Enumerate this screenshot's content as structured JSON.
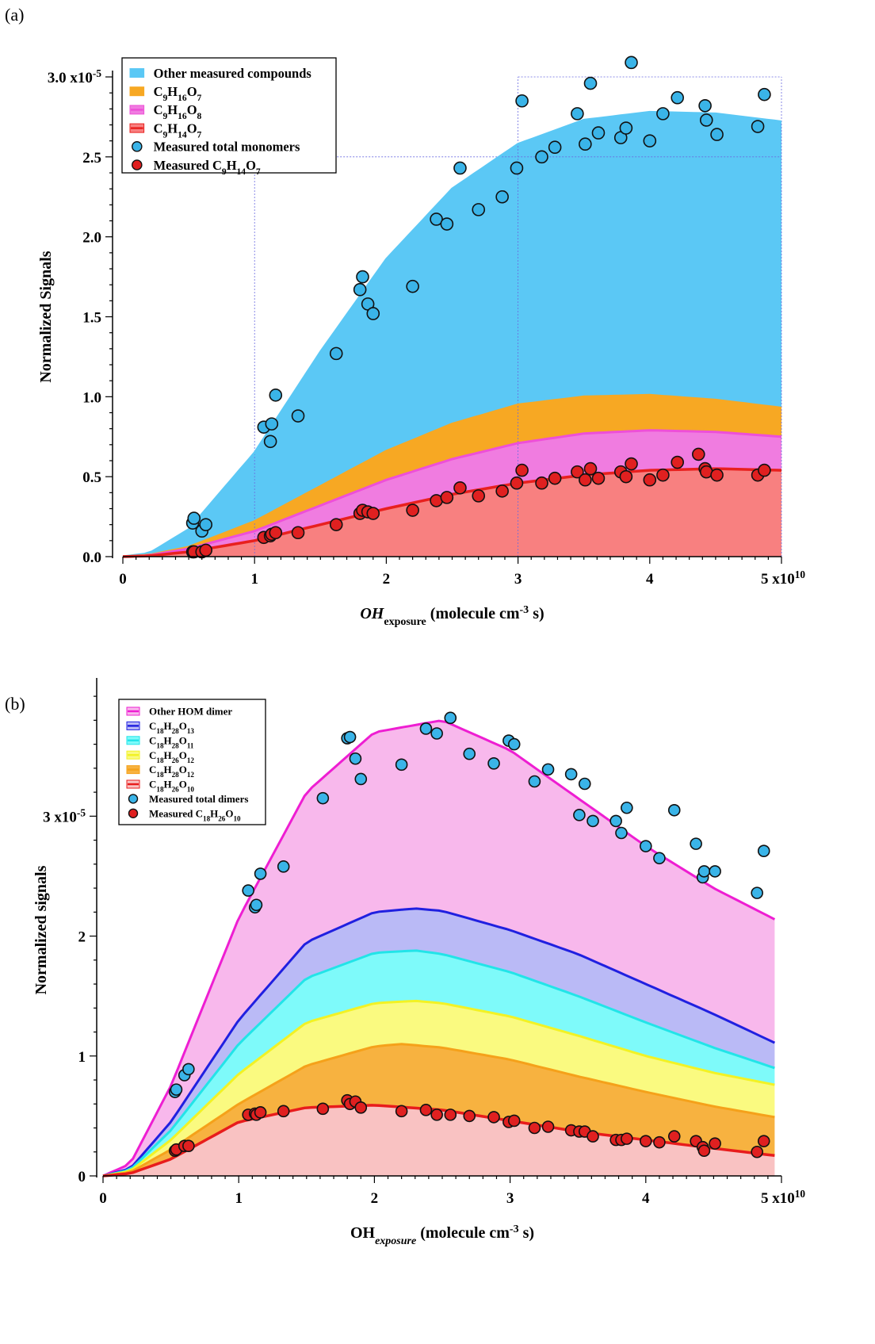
{
  "panel_labels": [
    "(a)",
    "(b)"
  ],
  "chart_data": [
    {
      "type": "area",
      "panel": "(a)",
      "xlabel_main": "OH",
      "xlabel_sub": "exposure",
      "xlabel_rest": " (molecule cm",
      "xlabel_sup": "-3",
      "xlabel_end": " s)",
      "ylabel": "Normalized Signals",
      "x_multiplier": "5 x10",
      "x_multiplier_exp": "10",
      "y_multiplier_exp": "-5",
      "xlim": [
        0,
        5
      ],
      "ylim": [
        0,
        3.0
      ],
      "x_ticks": [
        "0",
        "1",
        "2",
        "3",
        "4"
      ],
      "y_ticks": [
        "0.0",
        "0.5",
        "1.0",
        "1.5",
        "2.0",
        "2.5",
        "3.0 x10"
      ],
      "y_tick_values": [
        0,
        0.5,
        1.0,
        1.5,
        2.0,
        2.5,
        3.0
      ],
      "legend_placement": "top-left",
      "series": [
        {
          "name": "Other measured compounds",
          "color": "#5bc8f5",
          "line": "#5bc8f5",
          "kind": "stack",
          "x": [
            0,
            0.2,
            0.5,
            1.0,
            1.5,
            2.0,
            2.5,
            3.0,
            3.5,
            4.0,
            4.5,
            5.0
          ],
          "y": [
            0,
            0.02,
            0.17,
            0.65,
            1.28,
            1.86,
            2.3,
            2.58,
            2.73,
            2.78,
            2.77,
            2.72
          ]
        },
        {
          "name_parts": [
            [
              "C",
              ""
            ],
            [
              "9",
              "sub"
            ],
            [
              "H",
              ""
            ],
            [
              "16",
              "sub"
            ],
            [
              "O",
              ""
            ],
            [
              "7",
              "sub"
            ]
          ],
          "color": "#f7a823",
          "line": "#f7a823",
          "kind": "stack",
          "x": [
            0,
            0.2,
            0.5,
            1.0,
            1.5,
            2.0,
            2.5,
            3.0,
            3.5,
            4.0,
            4.5,
            5.0
          ],
          "y": [
            0,
            0.01,
            0.06,
            0.22,
            0.44,
            0.66,
            0.83,
            0.95,
            1.0,
            1.01,
            0.98,
            0.93
          ]
        },
        {
          "name_parts": [
            [
              "C",
              ""
            ],
            [
              "9",
              "sub"
            ],
            [
              "H",
              ""
            ],
            [
              "16",
              "sub"
            ],
            [
              "O",
              ""
            ],
            [
              "8",
              "sub"
            ]
          ],
          "color": "#f07ce0",
          "line": "#ee4fd8",
          "kind": "stack",
          "x": [
            0,
            0.2,
            0.5,
            1.0,
            1.5,
            2.0,
            2.5,
            3.0,
            3.5,
            4.0,
            4.5,
            5.0
          ],
          "y": [
            0,
            0.008,
            0.05,
            0.16,
            0.32,
            0.48,
            0.61,
            0.71,
            0.77,
            0.79,
            0.78,
            0.75
          ]
        },
        {
          "name_parts": [
            [
              "C",
              ""
            ],
            [
              "9",
              "sub"
            ],
            [
              "H",
              ""
            ],
            [
              "14",
              "sub"
            ],
            [
              "O",
              ""
            ],
            [
              "7",
              "sub"
            ]
          ],
          "color": "#f88080",
          "line": "#e8201e",
          "kind": "stack",
          "x": [
            0,
            0.2,
            0.5,
            1.0,
            1.5,
            2.0,
            2.5,
            3.0,
            3.5,
            4.0,
            4.5,
            5.0
          ],
          "y": [
            0,
            0.005,
            0.03,
            0.1,
            0.2,
            0.3,
            0.39,
            0.46,
            0.51,
            0.54,
            0.55,
            0.54
          ]
        },
        {
          "name": "Measured total monomers",
          "color": "#3ab4e8",
          "kind": "points",
          "x": [
            0.53,
            0.54,
            0.6,
            0.63,
            1.07,
            1.12,
            1.13,
            1.16,
            1.33,
            1.62,
            1.8,
            1.82,
            1.86,
            1.9,
            2.2,
            2.38,
            2.46,
            2.56,
            2.7,
            2.88,
            2.99,
            3.03,
            3.18,
            3.28,
            3.45,
            3.51,
            3.55,
            3.61,
            3.78,
            3.82,
            3.86,
            4.0,
            4.1,
            4.21,
            4.42,
            4.43,
            4.51,
            4.82,
            4.87
          ],
          "y": [
            0.21,
            0.24,
            0.16,
            0.2,
            0.81,
            0.72,
            0.83,
            1.01,
            0.88,
            1.27,
            1.67,
            1.75,
            1.58,
            1.52,
            1.69,
            2.11,
            2.08,
            2.43,
            2.17,
            2.25,
            2.43,
            2.85,
            2.5,
            2.56,
            2.77,
            2.58,
            2.96,
            2.65,
            2.62,
            2.68,
            3.09,
            2.6,
            2.77,
            2.87,
            2.82,
            2.73,
            2.64,
            2.69,
            2.89
          ]
        },
        {
          "name_parts": [
            [
              "Measured C",
              ""
            ],
            [
              "9",
              "sub"
            ],
            [
              "H",
              ""
            ],
            [
              "14",
              "sub"
            ],
            [
              "O",
              ""
            ],
            [
              "7",
              "sub"
            ]
          ],
          "color": "#e02020",
          "kind": "points",
          "x": [
            0.53,
            0.54,
            0.6,
            0.63,
            1.07,
            1.12,
            1.13,
            1.16,
            1.33,
            1.62,
            1.8,
            1.82,
            1.86,
            1.9,
            2.2,
            2.38,
            2.46,
            2.56,
            2.7,
            2.88,
            2.99,
            3.03,
            3.18,
            3.28,
            3.45,
            3.51,
            3.55,
            3.61,
            3.78,
            3.82,
            3.86,
            4.0,
            4.1,
            4.21,
            4.37,
            4.42,
            4.43,
            4.51,
            4.82,
            4.87
          ],
          "y": [
            0.03,
            0.03,
            0.03,
            0.04,
            0.12,
            0.13,
            0.14,
            0.15,
            0.15,
            0.2,
            0.27,
            0.29,
            0.28,
            0.27,
            0.29,
            0.35,
            0.37,
            0.43,
            0.38,
            0.41,
            0.46,
            0.54,
            0.46,
            0.49,
            0.53,
            0.48,
            0.55,
            0.49,
            0.53,
            0.5,
            0.58,
            0.48,
            0.51,
            0.59,
            0.64,
            0.55,
            0.53,
            0.51,
            0.51,
            0.54
          ]
        }
      ]
    },
    {
      "type": "area",
      "panel": "(b)",
      "xlabel_main": "OH",
      "xlabel_sub": "exposure",
      "xlabel_rest": " (molecule cm",
      "xlabel_sup": "-3",
      "xlabel_end": " s)",
      "ylabel": "Normalized signals",
      "x_multiplier": "5 x10",
      "x_multiplier_exp": "10",
      "y_multiplier_exp": "-5",
      "xlim": [
        0,
        5
      ],
      "ylim": [
        0,
        4.1
      ],
      "x_ticks": [
        "0",
        "1",
        "2",
        "3",
        "4"
      ],
      "y_ticks": [
        "0",
        "1",
        "2",
        "3 x10"
      ],
      "y_tick_values": [
        0,
        1,
        2,
        3
      ],
      "legend_placement": "top-left",
      "series": [
        {
          "name": "Other HOM dimer",
          "color": "#f8b8ec",
          "line": "#ee1ed2",
          "kind": "stack",
          "x": [
            0,
            0.2,
            0.5,
            1.0,
            1.5,
            2.0,
            2.5,
            3.0,
            3.5,
            4.0,
            4.5,
            4.95
          ],
          "y": [
            0,
            0.1,
            0.75,
            2.15,
            3.2,
            3.7,
            3.8,
            3.55,
            3.15,
            2.75,
            2.4,
            2.14
          ]
        },
        {
          "name_parts": [
            [
              "C",
              ""
            ],
            [
              "18",
              "sub"
            ],
            [
              "H",
              ""
            ],
            [
              "28",
              "sub"
            ],
            [
              "O",
              ""
            ],
            [
              "13",
              "sub"
            ]
          ],
          "color": "#babaf6",
          "line": "#2020e0",
          "kind": "stack",
          "x": [
            0,
            0.2,
            0.5,
            1.0,
            1.5,
            2.0,
            2.3,
            2.5,
            3.0,
            3.5,
            4.0,
            4.5,
            4.95
          ],
          "y": [
            0,
            0.06,
            0.45,
            1.3,
            1.95,
            2.2,
            2.23,
            2.21,
            2.05,
            1.85,
            1.6,
            1.35,
            1.11
          ]
        },
        {
          "name_parts": [
            [
              "C",
              ""
            ],
            [
              "18",
              "sub"
            ],
            [
              "H",
              ""
            ],
            [
              "28",
              "sub"
            ],
            [
              "O",
              ""
            ],
            [
              "11",
              "sub"
            ]
          ],
          "color": "#7efafa",
          "line": "#22e4e8",
          "kind": "stack",
          "x": [
            0,
            0.2,
            0.5,
            1.0,
            1.5,
            2.0,
            2.3,
            2.5,
            3.0,
            3.5,
            4.0,
            4.5,
            4.95
          ],
          "y": [
            0,
            0.05,
            0.38,
            1.1,
            1.65,
            1.86,
            1.88,
            1.85,
            1.7,
            1.5,
            1.28,
            1.07,
            0.9
          ]
        },
        {
          "name_parts": [
            [
              "C",
              ""
            ],
            [
              "18",
              "sub"
            ],
            [
              "H",
              ""
            ],
            [
              "26",
              "sub"
            ],
            [
              "O",
              ""
            ],
            [
              "12",
              "sub"
            ]
          ],
          "color": "#fafa80",
          "line": "#f2f224",
          "kind": "stack",
          "x": [
            0,
            0.2,
            0.5,
            1.0,
            1.5,
            2.0,
            2.3,
            2.5,
            3.0,
            3.5,
            4.0,
            4.5,
            4.95
          ],
          "y": [
            0,
            0.04,
            0.3,
            0.85,
            1.28,
            1.44,
            1.46,
            1.44,
            1.33,
            1.17,
            1.0,
            0.86,
            0.76
          ]
        },
        {
          "name_parts": [
            [
              "C",
              ""
            ],
            [
              "18",
              "sub"
            ],
            [
              "H",
              ""
            ],
            [
              "28",
              "sub"
            ],
            [
              "O",
              ""
            ],
            [
              "12",
              "sub"
            ]
          ],
          "color": "#f7b240",
          "line": "#f5a11a",
          "kind": "stack",
          "x": [
            0,
            0.2,
            0.5,
            1.0,
            1.5,
            2.0,
            2.2,
            2.5,
            3.0,
            3.5,
            4.0,
            4.5,
            4.95
          ],
          "y": [
            0,
            0.03,
            0.22,
            0.6,
            0.92,
            1.08,
            1.1,
            1.07,
            0.97,
            0.83,
            0.7,
            0.58,
            0.49
          ]
        },
        {
          "name_parts": [
            [
              "C",
              ""
            ],
            [
              "18",
              "sub"
            ],
            [
              "H",
              ""
            ],
            [
              "26",
              "sub"
            ],
            [
              "O",
              ""
            ],
            [
              "10",
              "sub"
            ]
          ],
          "color": "#f9c2c2",
          "line": "#e81c1c",
          "kind": "stack",
          "x": [
            0,
            0.2,
            0.5,
            1.0,
            1.5,
            2.0,
            2.5,
            3.0,
            3.5,
            4.0,
            4.5,
            4.95
          ],
          "y": [
            0,
            0.02,
            0.14,
            0.45,
            0.57,
            0.59,
            0.55,
            0.46,
            0.37,
            0.3,
            0.23,
            0.17
          ]
        },
        {
          "name": "Measured total dimers",
          "color": "#3ab4e8",
          "kind": "points",
          "x": [
            0.53,
            0.54,
            0.6,
            0.63,
            1.07,
            1.12,
            1.13,
            1.16,
            1.33,
            1.62,
            1.8,
            1.82,
            1.86,
            1.9,
            2.2,
            2.38,
            2.46,
            2.56,
            2.7,
            2.88,
            2.99,
            3.03,
            3.18,
            3.28,
            3.45,
            3.51,
            3.55,
            3.61,
            3.78,
            3.82,
            3.86,
            4.0,
            4.1,
            4.21,
            4.37,
            4.42,
            4.43,
            4.51,
            4.82,
            4.87
          ],
          "y": [
            0.7,
            0.72,
            0.84,
            0.89,
            2.38,
            2.24,
            2.26,
            2.52,
            2.58,
            3.15,
            3.65,
            3.66,
            3.48,
            3.31,
            3.43,
            3.73,
            3.69,
            3.82,
            3.52,
            3.44,
            3.63,
            3.6,
            3.29,
            3.39,
            3.35,
            3.01,
            3.27,
            2.96,
            2.96,
            2.86,
            3.07,
            2.75,
            2.65,
            3.05,
            2.77,
            2.49,
            2.54,
            2.54,
            2.36,
            2.71
          ]
        },
        {
          "name_parts": [
            [
              "Measured C",
              ""
            ],
            [
              "18",
              "sub"
            ],
            [
              "H",
              ""
            ],
            [
              "26",
              "sub"
            ],
            [
              "O",
              ""
            ],
            [
              "10",
              "sub"
            ]
          ],
          "color": "#e02020",
          "kind": "points",
          "x": [
            0.53,
            0.54,
            0.6,
            0.63,
            1.07,
            1.12,
            1.13,
            1.16,
            1.33,
            1.62,
            1.8,
            1.82,
            1.86,
            1.9,
            2.2,
            2.38,
            2.46,
            2.56,
            2.7,
            2.88,
            2.99,
            3.03,
            3.18,
            3.28,
            3.45,
            3.51,
            3.55,
            3.61,
            3.78,
            3.82,
            3.86,
            4.0,
            4.1,
            4.21,
            4.37,
            4.42,
            4.43,
            4.51,
            4.82,
            4.87
          ],
          "y": [
            0.21,
            0.22,
            0.25,
            0.25,
            0.51,
            0.52,
            0.51,
            0.53,
            0.54,
            0.56,
            0.63,
            0.6,
            0.62,
            0.57,
            0.54,
            0.55,
            0.51,
            0.51,
            0.5,
            0.49,
            0.45,
            0.46,
            0.4,
            0.41,
            0.38,
            0.37,
            0.37,
            0.33,
            0.3,
            0.3,
            0.31,
            0.29,
            0.28,
            0.33,
            0.29,
            0.24,
            0.21,
            0.27,
            0.2,
            0.29
          ]
        }
      ]
    }
  ]
}
